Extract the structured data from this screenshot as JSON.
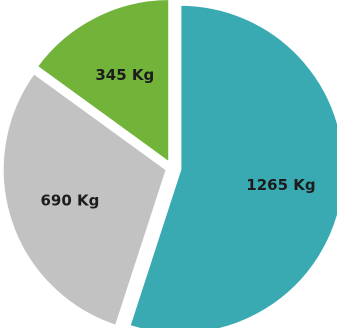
{
  "chart_data": {
    "type": "pie",
    "title": "",
    "slices": [
      {
        "label": "1265 Kg",
        "value": 1265,
        "color": "#3aaab2"
      },
      {
        "label": "690 Kg",
        "value": 690,
        "color": "#c2c2c2"
      },
      {
        "label": "345 Kg",
        "value": 345,
        "color": "#72b43a"
      }
    ],
    "start_at": "top",
    "direction": "clockwise",
    "exploded": true
  }
}
